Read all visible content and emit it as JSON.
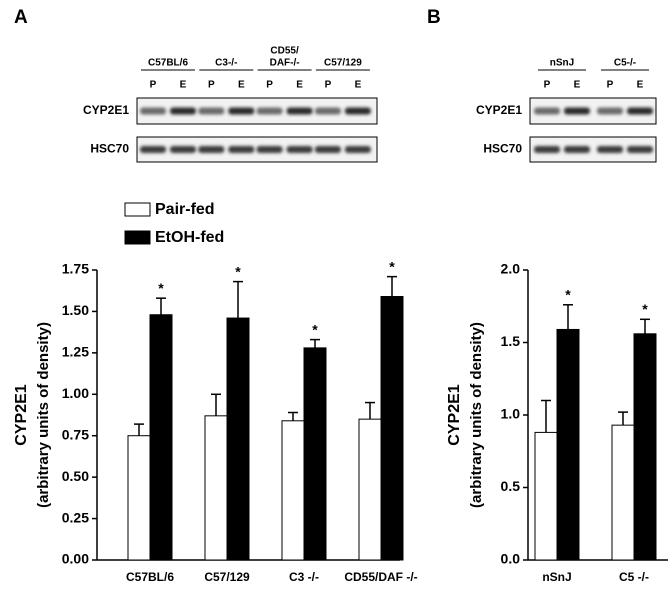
{
  "chart_data": [
    {
      "type": "bar",
      "panel_label": "A",
      "blot": {
        "groups": [
          [
            "C57BL/6"
          ],
          [
            "C3-/-"
          ],
          [
            "CD55/",
            "DAF-/-"
          ],
          [
            "C57/129"
          ]
        ],
        "lanes": [
          "P",
          "E",
          "P",
          "E",
          "P",
          "E",
          "P",
          "E"
        ],
        "rows": [
          "CYP2E1",
          "HSC70"
        ]
      },
      "ylabel": [
        "CYP2E1",
        "(arbitrary units of density)"
      ],
      "categories": [
        "C57BL/6",
        "C57/129",
        "C3 -/-",
        "CD55/DAF -/-"
      ],
      "series": [
        {
          "name": "Pair-fed",
          "color": "#ffffff",
          "values": [
            0.75,
            0.87,
            0.84,
            0.85
          ],
          "errors": [
            0.07,
            0.13,
            0.05,
            0.1
          ]
        },
        {
          "name": "EtOH-fed",
          "color": "#000000",
          "values": [
            1.48,
            1.46,
            1.28,
            1.59
          ],
          "errors": [
            0.1,
            0.22,
            0.05,
            0.12
          ],
          "annotations": [
            "*",
            "*",
            "*",
            "*"
          ]
        }
      ],
      "ylim": [
        0,
        1.75
      ],
      "yticks": [
        {
          "value": 0,
          "label": "0.00"
        },
        {
          "value": 0.25,
          "label": "0.25"
        },
        {
          "value": 0.5,
          "label": "0.50"
        },
        {
          "value": 0.75,
          "label": "0.75"
        },
        {
          "value": 1,
          "label": "1.00"
        },
        {
          "value": 1.25,
          "label": "1.25"
        },
        {
          "value": 1.5,
          "label": "1.50"
        },
        {
          "value": 1.75,
          "label": "1.75"
        }
      ],
      "legend": "upper left"
    },
    {
      "type": "bar",
      "panel_label": "B",
      "blot": {
        "groups": [
          [
            "nSnJ"
          ],
          [
            "C5-/-"
          ]
        ],
        "lanes": [
          "P",
          "E",
          "P",
          "E"
        ],
        "rows": [
          "CYP2E1",
          "HSC70"
        ]
      },
      "ylabel": [
        "CYP2E1",
        "(arbitrary units of density)"
      ],
      "categories": [
        "nSnJ",
        "C5 -/-"
      ],
      "series": [
        {
          "name": "Pair-fed",
          "color": "#ffffff",
          "values": [
            0.88,
            0.93
          ],
          "errors": [
            0.22,
            0.09
          ]
        },
        {
          "name": "EtOH-fed",
          "color": "#000000",
          "values": [
            1.59,
            1.56
          ],
          "errors": [
            0.17,
            0.1
          ],
          "annotations": [
            "*",
            "*"
          ]
        }
      ],
      "ylim": [
        0,
        2
      ],
      "yticks": [
        {
          "value": 0,
          "label": "0.0"
        },
        {
          "value": 0.5,
          "label": "0.5"
        },
        {
          "value": 1,
          "label": "1.0"
        },
        {
          "value": 1.5,
          "label": "1.5"
        },
        {
          "value": 2,
          "label": "2.0"
        }
      ]
    }
  ]
}
